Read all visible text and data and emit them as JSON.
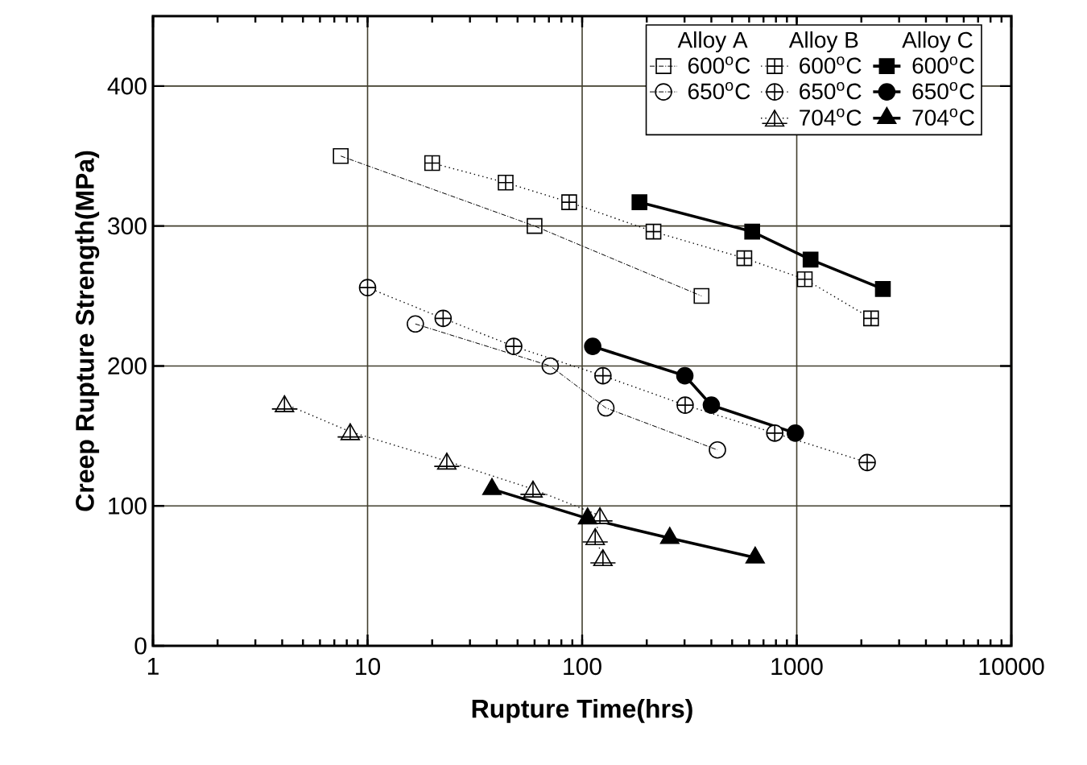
{
  "chart_data": {
    "type": "line",
    "xlabel": "Rupture Time(hrs)",
    "ylabel": "Creep Rupture Strength(MPa)",
    "log": "x",
    "grid": true,
    "legend": "top right",
    "xlim": [
      1,
      10000
    ],
    "xticks": [
      1,
      10,
      100,
      1000,
      10000
    ],
    "ylim": [
      0,
      450
    ],
    "yticks": [
      0,
      100,
      200,
      300,
      400
    ],
    "annotations": [
      "Alloy A",
      "Alloy B",
      "Alloy C"
    ],
    "series": [
      {
        "name": "600$^{o}$C",
        "color": "#000000",
        "marker": "square",
        "line_style": "dashdot",
        "x": [
          7.5,
          60,
          360
        ],
        "values": [
          350,
          300,
          250
        ]
      },
      {
        "name": "650$^{o}$C",
        "color": "#000000",
        "marker": "circle",
        "line_style": "dashdot",
        "x": [
          16.7,
          71,
          129,
          427
        ],
        "values": [
          230,
          200,
          170,
          140
        ]
      },
      {
        "name": "600$^{o}$C",
        "color": "#000000",
        "marker": "square",
        "line_style": "dotted",
        "x": [
          20,
          44,
          87,
          215,
          570,
          1090,
          2220
        ],
        "values": [
          345,
          331,
          317,
          296,
          277,
          262,
          234
        ]
      },
      {
        "name": "650$^{o}$C",
        "color": "#000000",
        "marker": "circle",
        "line_style": "dotted",
        "x": [
          10,
          22.5,
          48,
          125,
          302,
          790,
          2130
        ],
        "values": [
          256,
          234,
          214,
          193,
          172,
          152,
          131
        ]
      },
      {
        "name": "704$^{o}$C",
        "color": "#000000",
        "marker": "triangle",
        "line_style": "dotted",
        "x": [
          4.1,
          8.3,
          23.4,
          59,
          121,
          115,
          125
        ],
        "values": [
          173,
          153,
          132,
          112,
          93,
          78,
          63
        ]
      },
      {
        "name": "600$^{o}$C",
        "color": "#000000",
        "marker": "square",
        "line_style": "solid",
        "x": [
          185,
          620,
          1160,
          2520
        ],
        "values": [
          317,
          296,
          276,
          255
        ]
      },
      {
        "name": "650$^{o}$C",
        "color": "#000000",
        "marker": "circle",
        "line_style": "solid",
        "x": [
          112,
          301,
          400,
          985
        ],
        "values": [
          214,
          193,
          172,
          152
        ]
      },
      {
        "name": "704$^{o}$C",
        "color": "#000000",
        "marker": "triangle",
        "line_style": "solid",
        "x": [
          38,
          106,
          256,
          640
        ],
        "values": [
          112,
          91,
          77,
          63
        ]
      }
    ]
  }
}
